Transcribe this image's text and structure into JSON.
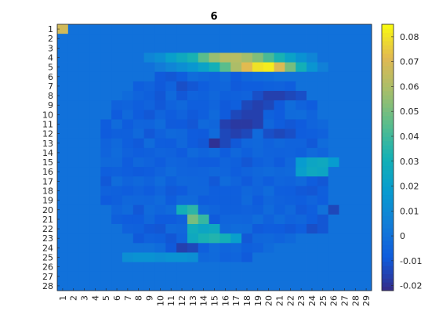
{
  "chart_data": {
    "type": "heatmap",
    "title": "6",
    "xlabel": "",
    "ylabel": "",
    "x_ticks": [
      "1",
      "2",
      "3",
      "4",
      "5",
      "6",
      "7",
      "8",
      "9",
      "10",
      "11",
      "12",
      "13",
      "14",
      "15",
      "16",
      "17",
      "18",
      "19",
      "20",
      "21",
      "22",
      "23",
      "24",
      "25",
      "26",
      "27",
      "28",
      "29"
    ],
    "y_ticks": [
      "1",
      "2",
      "3",
      "4",
      "5",
      "6",
      "7",
      "8",
      "9",
      "10",
      "11",
      "12",
      "13",
      "14",
      "15",
      "16",
      "17",
      "18",
      "19",
      "20",
      "21",
      "22",
      "23",
      "24",
      "25",
      "26",
      "27",
      "28"
    ],
    "colorbar": {
      "colormap": "parula",
      "clim": [
        -0.022,
        0.085
      ],
      "ticks": [
        "-0.02",
        "-0.01",
        "0",
        "0.01",
        "0.02",
        "0.03",
        "0.04",
        "0.05",
        "0.06",
        "0.07",
        "0.08"
      ]
    },
    "rows": 28,
    "cols": 29,
    "background_value": 0.0,
    "values_sparse": [
      [
        1,
        1,
        0.068
      ],
      [
        4,
        9,
        0.008
      ],
      [
        4,
        10,
        0.012
      ],
      [
        4,
        11,
        0.02
      ],
      [
        4,
        12,
        0.026
      ],
      [
        4,
        13,
        0.032
      ],
      [
        4,
        14,
        0.045
      ],
      [
        4,
        15,
        0.056
      ],
      [
        4,
        16,
        0.062
      ],
      [
        4,
        17,
        0.062
      ],
      [
        4,
        18,
        0.058
      ],
      [
        4,
        19,
        0.052
      ],
      [
        4,
        20,
        0.042
      ],
      [
        4,
        21,
        0.032
      ],
      [
        4,
        22,
        0.022
      ],
      [
        4,
        23,
        0.014
      ],
      [
        4,
        24,
        0.008
      ],
      [
        5,
        10,
        0.004
      ],
      [
        5,
        11,
        0.008
      ],
      [
        5,
        12,
        0.012
      ],
      [
        5,
        13,
        0.016
      ],
      [
        5,
        14,
        0.022
      ],
      [
        5,
        15,
        0.03
      ],
      [
        5,
        16,
        0.045
      ],
      [
        5,
        17,
        0.06
      ],
      [
        5,
        18,
        0.072
      ],
      [
        5,
        19,
        0.08
      ],
      [
        5,
        20,
        0.082
      ],
      [
        5,
        21,
        0.07
      ],
      [
        5,
        22,
        0.05
      ],
      [
        5,
        23,
        0.03
      ],
      [
        5,
        24,
        0.015
      ],
      [
        5,
        25,
        0.006
      ],
      [
        7,
        12,
        -0.012
      ],
      [
        7,
        13,
        -0.01
      ],
      [
        7,
        14,
        -0.008
      ],
      [
        8,
        19,
        -0.012
      ],
      [
        8,
        20,
        -0.016
      ],
      [
        8,
        21,
        -0.016
      ],
      [
        8,
        22,
        -0.014
      ],
      [
        8,
        23,
        -0.012
      ],
      [
        9,
        18,
        -0.014
      ],
      [
        9,
        19,
        -0.016
      ],
      [
        9,
        20,
        -0.014
      ],
      [
        10,
        17,
        -0.014
      ],
      [
        10,
        18,
        -0.016
      ],
      [
        10,
        19,
        -0.016
      ],
      [
        11,
        16,
        -0.016
      ],
      [
        11,
        17,
        -0.018
      ],
      [
        11,
        18,
        -0.018
      ],
      [
        11,
        19,
        -0.016
      ],
      [
        12,
        16,
        -0.014
      ],
      [
        12,
        17,
        -0.016
      ],
      [
        12,
        18,
        -0.014
      ],
      [
        12,
        20,
        -0.012
      ],
      [
        12,
        21,
        -0.014
      ],
      [
        12,
        22,
        -0.012
      ],
      [
        13,
        15,
        -0.02
      ],
      [
        13,
        16,
        -0.014
      ],
      [
        15,
        23,
        0.018
      ],
      [
        15,
        24,
        0.024
      ],
      [
        15,
        25,
        0.026
      ],
      [
        15,
        26,
        0.018
      ],
      [
        16,
        23,
        0.02
      ],
      [
        16,
        24,
        0.026
      ],
      [
        16,
        25,
        0.024
      ],
      [
        20,
        12,
        0.03
      ],
      [
        20,
        13,
        0.036
      ],
      [
        20,
        26,
        -0.014
      ],
      [
        21,
        13,
        0.05
      ],
      [
        21,
        14,
        0.038
      ],
      [
        21,
        24,
        -0.008
      ],
      [
        21,
        25,
        -0.01
      ],
      [
        22,
        13,
        0.028
      ],
      [
        22,
        14,
        0.024
      ],
      [
        22,
        15,
        0.026
      ],
      [
        22,
        24,
        -0.012
      ],
      [
        22,
        25,
        -0.01
      ],
      [
        23,
        13,
        0.026
      ],
      [
        23,
        14,
        0.032
      ],
      [
        23,
        15,
        0.034
      ],
      [
        23,
        16,
        0.03
      ],
      [
        23,
        17,
        0.02
      ],
      [
        24,
        12,
        -0.016
      ],
      [
        24,
        13,
        -0.014
      ],
      [
        25,
        7,
        0.012
      ],
      [
        25,
        8,
        0.014
      ],
      [
        25,
        9,
        0.014
      ],
      [
        25,
        10,
        0.012
      ],
      [
        25,
        11,
        0.014
      ],
      [
        25,
        12,
        0.014
      ],
      [
        25,
        13,
        0.012
      ]
    ]
  }
}
